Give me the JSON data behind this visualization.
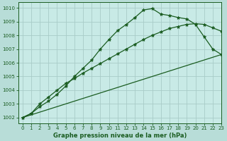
{
  "title": "Graphe pression niveau de la mer (hPa)",
  "background_color": "#b8ddd8",
  "plot_bg_color": "#c8eae6",
  "grid_color": "#a8ccc8",
  "line_color": "#1a5c20",
  "xlim": [
    -0.5,
    23
  ],
  "ylim": [
    1001.6,
    1010.4
  ],
  "xticks": [
    0,
    1,
    2,
    3,
    4,
    5,
    6,
    7,
    8,
    9,
    10,
    11,
    12,
    13,
    14,
    15,
    16,
    17,
    18,
    19,
    20,
    21,
    22,
    23
  ],
  "yticks": [
    1002,
    1003,
    1004,
    1005,
    1006,
    1007,
    1008,
    1009,
    1010
  ],
  "series1_x": [
    0,
    1,
    2,
    3,
    4,
    5,
    6,
    7,
    8,
    9,
    10,
    11,
    12,
    13,
    14,
    15,
    16,
    17,
    18,
    19,
    20,
    21,
    22,
    23
  ],
  "series1_y": [
    1002.0,
    1002.3,
    1002.8,
    1003.2,
    1003.7,
    1004.3,
    1005.0,
    1005.6,
    1006.2,
    1007.0,
    1007.7,
    1008.35,
    1008.8,
    1009.3,
    1009.85,
    1009.95,
    1009.55,
    1009.45,
    1009.3,
    1009.2,
    1008.8,
    1007.9,
    1007.0,
    1006.6
  ],
  "series2_x": [
    0,
    1,
    2,
    3,
    4,
    5,
    6,
    7,
    8,
    9,
    10,
    11,
    12,
    13,
    14,
    15,
    16,
    17,
    18,
    19,
    20,
    21,
    22,
    23
  ],
  "series2_y": [
    1002.0,
    1002.3,
    1003.0,
    1003.5,
    1004.0,
    1004.5,
    1004.85,
    1005.25,
    1005.6,
    1005.95,
    1006.3,
    1006.65,
    1007.0,
    1007.35,
    1007.7,
    1008.0,
    1008.25,
    1008.5,
    1008.65,
    1008.8,
    1008.85,
    1008.8,
    1008.55,
    1008.3
  ],
  "series3_x": [
    0,
    23
  ],
  "series3_y": [
    1002.0,
    1006.6
  ],
  "marker": "*",
  "markersize": 3.5,
  "linewidth": 0.9,
  "tick_fontsize": 5.0,
  "xlabel_fontsize": 6.0
}
